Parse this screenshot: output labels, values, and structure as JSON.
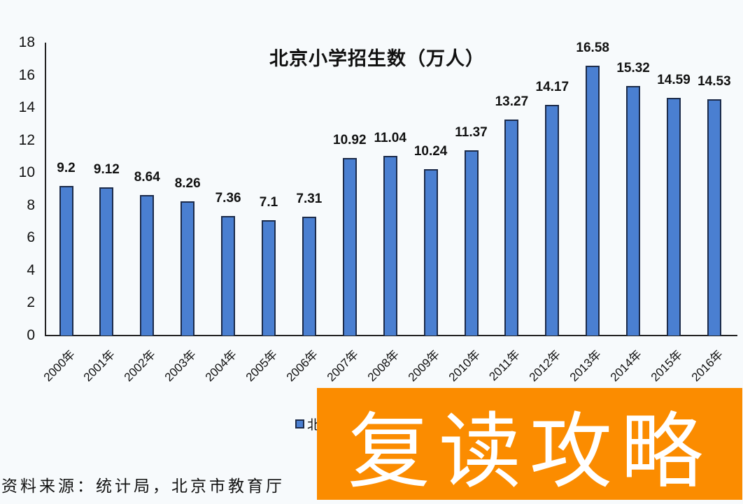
{
  "chart_data": {
    "type": "bar",
    "title": "北京小学招生数（万人）",
    "xlabel": "",
    "ylabel": "",
    "ylim": [
      0,
      18
    ],
    "yticks": [
      0,
      2,
      4,
      6,
      8,
      10,
      12,
      14,
      16,
      18
    ],
    "grid": false,
    "legend_position": "bottom",
    "categories": [
      "2000年",
      "2001年",
      "2002年",
      "2003年",
      "2004年",
      "2005年",
      "2006年",
      "2007年",
      "2008年",
      "2009年",
      "2010年",
      "2011年",
      "2012年",
      "2013年",
      "2014年",
      "2015年",
      "2016年"
    ],
    "series": [
      {
        "name": "北京小学招生数",
        "color": "#4a7fd1",
        "values": [
          9.2,
          9.12,
          8.64,
          8.26,
          7.36,
          7.1,
          7.31,
          10.92,
          11.04,
          10.24,
          11.37,
          13.27,
          14.17,
          16.58,
          15.32,
          14.59,
          14.53
        ]
      }
    ],
    "data_labels": [
      "9.2",
      "9.12",
      "8.64",
      "8.26",
      "7.36",
      "7.1",
      "7.31",
      "10.92",
      "11.04",
      "10.24",
      "11.37",
      "13.27",
      "14.17",
      "16.58",
      "15.32",
      "14.59",
      "14.53"
    ]
  },
  "legend": {
    "visible_text": "北"
  },
  "source_note": "资料来源：统计局，北京市教育厅",
  "watermark": {
    "text": "复读攻略",
    "background": "#fb8c00",
    "color": "#ffffff"
  }
}
